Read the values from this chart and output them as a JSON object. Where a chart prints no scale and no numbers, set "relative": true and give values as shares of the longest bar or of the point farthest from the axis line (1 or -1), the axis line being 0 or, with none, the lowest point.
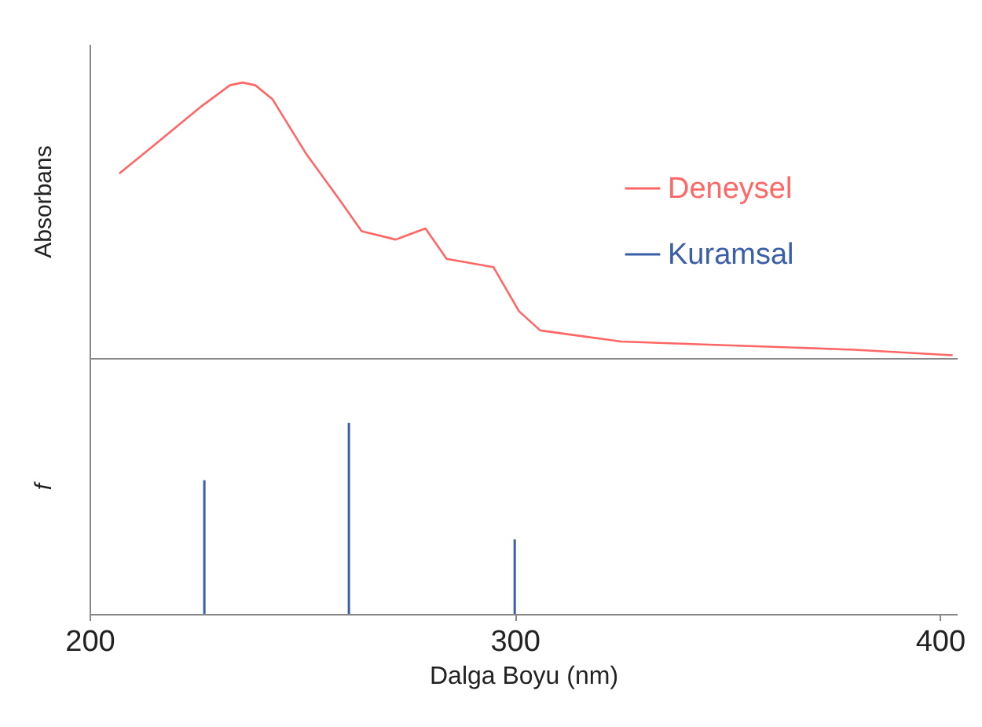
{
  "chart_data": [
    {
      "type": "line",
      "ylabel": "Absorbans",
      "relative": true,
      "tick_labels": false,
      "legend": "right",
      "xlim": [
        200,
        404
      ],
      "xticks": [
        200,
        300,
        400
      ],
      "series": [
        {
          "name": "Deneysel",
          "color": "#ff6666",
          "x": [
            207,
            215,
            226,
            233,
            236,
            239,
            243,
            251,
            259,
            264,
            272,
            279,
            284,
            295,
            301,
            306,
            325,
            343,
            362,
            380,
            403
          ],
          "values": [
            0.67,
            0.77,
            0.91,
            0.99,
            1,
            0.99,
            0.94,
            0.74,
            0.57,
            0.46,
            0.43,
            0.47,
            0.36,
            0.33,
            0.17,
            0.1,
            0.06,
            0.05,
            0.04,
            0.03,
            0.01
          ]
        }
      ]
    },
    {
      "type": "bar",
      "ylabel": "f",
      "xlabel": "Dalga Boyu (nm)",
      "relative": true,
      "tick_labels": "x",
      "xlim": [
        200,
        404
      ],
      "xticks": [
        200,
        300,
        400
      ],
      "series": [
        {
          "name": "Kuramsal",
          "color": "#3a5ea8",
          "x": [
            227,
            261,
            300
          ],
          "values": [
            0.7,
            1,
            0.39
          ]
        }
      ]
    }
  ]
}
